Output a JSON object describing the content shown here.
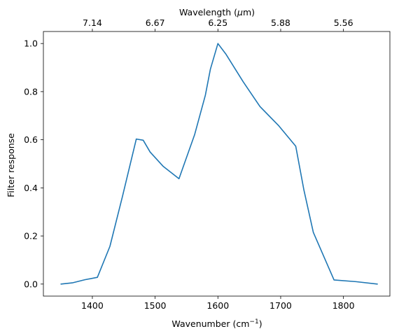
{
  "chart_data": {
    "type": "line",
    "title": "",
    "xlabel": "Wavenumber (cm",
    "xlabel_sup": "−1",
    "xlabel_end": ")",
    "ylabel": "Filter response",
    "top_xlabel": "Wavelength (",
    "top_xlabel_sym": "μ",
    "top_xlabel_end": "m)",
    "xlim": [
      1322,
      1874
    ],
    "ylim": [
      -0.05,
      1.05
    ],
    "x_ticks": [
      1400,
      1500,
      1600,
      1700,
      1800
    ],
    "x_tick_labels": [
      "1400",
      "1500",
      "1600",
      "1700",
      "1800"
    ],
    "y_ticks": [
      0.0,
      0.2,
      0.4,
      0.6,
      0.8,
      1.0
    ],
    "y_tick_labels": [
      "0.0",
      "0.2",
      "0.4",
      "0.6",
      "0.8",
      "1.0"
    ],
    "top_ticks_wavenumber": [
      1400,
      1500,
      1600,
      1700,
      1800
    ],
    "top_tick_labels": [
      "7.14",
      "6.67",
      "6.25",
      "5.88",
      "5.56"
    ],
    "grid": false,
    "series": [
      {
        "color": "#1f77b4",
        "x": [
          1350,
          1368,
          1388,
          1408,
          1428,
          1448,
          1470,
          1481,
          1492,
          1513,
          1538,
          1563,
          1580,
          1588,
          1600,
          1613,
          1640,
          1667,
          1697,
          1724,
          1737,
          1752,
          1785,
          1820,
          1854
        ],
        "y": [
          0.0,
          0.005,
          0.018,
          0.028,
          0.157,
          0.365,
          0.603,
          0.598,
          0.549,
          0.489,
          0.438,
          0.622,
          0.785,
          0.893,
          1.0,
          0.955,
          0.842,
          0.738,
          0.658,
          0.573,
          0.391,
          0.215,
          0.017,
          0.01,
          0.0
        ]
      }
    ]
  }
}
